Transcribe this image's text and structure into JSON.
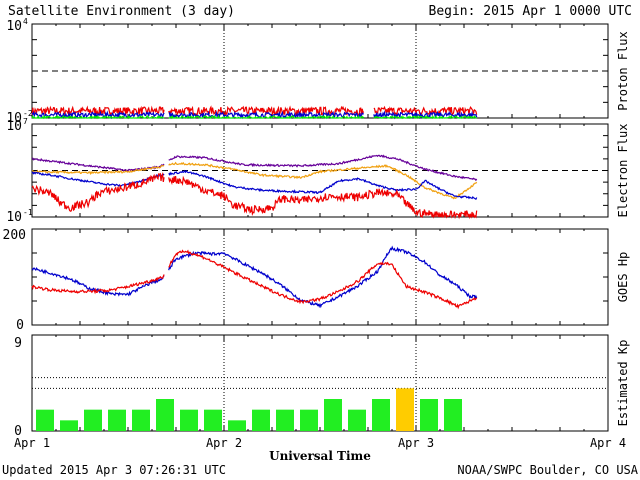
{
  "header": {
    "title": "Satellite Environment (3 day)",
    "begin": "Begin:  2015 Apr 1 0000 UTC"
  },
  "footer": {
    "updated": "Updated 2015 Apr  3 07:26:31 UTC",
    "credit": "NOAA/SWPC Boulder, CO USA",
    "xaxis_title": "Universal Time"
  },
  "colors": {
    "red": "#ee0000",
    "blue": "#0000cc",
    "green": "#00ee00",
    "purple": "#660099",
    "orange": "#f0a010",
    "kp_normal": "#22ee22",
    "kp_storm": "#ffcc00"
  },
  "chart_data": [
    {
      "type": "line",
      "name": "proton",
      "ylabel": "Proton Flux",
      "log_scale": true,
      "ylim_exp": [
        -2,
        4
      ],
      "ytick_labels": [
        {
          "base": "10",
          "exp": "4"
        },
        {
          "base": "10",
          "exp": "-2"
        }
      ],
      "threshold_exp": 1,
      "xlim_days": [
        0,
        3
      ],
      "series": [
        {
          "color_key": "red",
          "level_exp": -1.55,
          "noise": 0.25
        },
        {
          "color_key": "blue",
          "level_exp": -1.8,
          "noise": 0.15
        },
        {
          "color_key": "green",
          "level_exp": -2.0,
          "noise": 0.12
        }
      ],
      "gaps_days": [
        [
          0.69,
          0.71
        ],
        [
          1.73,
          1.78
        ]
      ],
      "data_end_day": 2.32
    },
    {
      "type": "line",
      "name": "electron",
      "ylabel": "Electron Flux",
      "log_scale": true,
      "ylim_exp": [
        -1,
        7
      ],
      "ytick_labels": [
        {
          "base": "10",
          "exp": "7"
        },
        {
          "base": "10",
          "exp": "-1"
        }
      ],
      "threshold_exp": 3,
      "xlim_days": [
        0,
        3
      ],
      "series": [
        {
          "color_key": "purple",
          "points": [
            [
              0,
              4.0
            ],
            [
              0.3,
              3.4
            ],
            [
              0.5,
              3.0
            ],
            [
              0.66,
              3.3
            ],
            [
              0.75,
              4.2
            ],
            [
              0.9,
              4.1
            ],
            [
              1.1,
              3.5
            ],
            [
              1.4,
              3.4
            ],
            [
              1.6,
              3.6
            ],
            [
              1.8,
              4.3
            ],
            [
              1.9,
              4.0
            ],
            [
              2.05,
              3.1
            ],
            [
              2.2,
              2.5
            ],
            [
              2.32,
              2.2
            ]
          ]
        },
        {
          "color_key": "orange",
          "points": [
            [
              0,
              2.9
            ],
            [
              0.3,
              2.8
            ],
            [
              0.5,
              2.9
            ],
            [
              0.66,
              3.3
            ],
            [
              0.75,
              3.6
            ],
            [
              0.9,
              3.5
            ],
            [
              1.05,
              3.1
            ],
            [
              1.2,
              2.6
            ],
            [
              1.4,
              2.4
            ],
            [
              1.5,
              2.9
            ],
            [
              1.7,
              3.2
            ],
            [
              1.85,
              3.4
            ],
            [
              1.95,
              2.6
            ],
            [
              2.05,
              1.5
            ],
            [
              2.2,
              0.6
            ],
            [
              2.32,
              2.0
            ]
          ]
        },
        {
          "color_key": "blue",
          "points": [
            [
              0,
              2.8
            ],
            [
              0.1,
              2.6
            ],
            [
              0.2,
              2.3
            ],
            [
              0.35,
              1.9
            ],
            [
              0.46,
              1.7
            ],
            [
              0.55,
              2.0
            ],
            [
              0.66,
              2.6
            ],
            [
              0.8,
              2.9
            ],
            [
              0.9,
              2.5
            ],
            [
              1.05,
              1.6
            ],
            [
              1.2,
              1.3
            ],
            [
              1.35,
              1.2
            ],
            [
              1.5,
              1.1
            ],
            [
              1.6,
              2.1
            ],
            [
              1.7,
              2.3
            ],
            [
              1.8,
              1.7
            ],
            [
              1.9,
              1.3
            ],
            [
              2.0,
              1.4
            ],
            [
              2.05,
              2.1
            ],
            [
              2.1,
              1.6
            ],
            [
              2.2,
              0.8
            ],
            [
              2.32,
              0.6
            ]
          ]
        },
        {
          "color_key": "red",
          "points": [
            [
              0,
              1.5
            ],
            [
              0.1,
              1.0
            ],
            [
              0.15,
              0.2
            ],
            [
              0.2,
              -0.2
            ],
            [
              0.3,
              0.3
            ],
            [
              0.35,
              1.1
            ],
            [
              0.45,
              1.4
            ],
            [
              0.55,
              1.8
            ],
            [
              0.66,
              2.4
            ],
            [
              0.8,
              2.1
            ],
            [
              0.9,
              1.3
            ],
            [
              1.0,
              0.8
            ],
            [
              1.05,
              0.0
            ],
            [
              1.15,
              -0.4
            ],
            [
              1.25,
              -0.2
            ],
            [
              1.3,
              0.6
            ],
            [
              1.4,
              0.4
            ],
            [
              1.55,
              0.8
            ],
            [
              1.7,
              0.7
            ],
            [
              1.8,
              1.1
            ],
            [
              1.9,
              0.9
            ],
            [
              2.0,
              -0.6
            ],
            [
              2.1,
              -0.8
            ],
            [
              2.32,
              -0.8
            ]
          ]
        }
      ],
      "gaps_days": [
        [
          0.69,
          0.71
        ]
      ],
      "data_end_day": 2.32
    },
    {
      "type": "line",
      "name": "goes_hp",
      "ylabel": "GOES Hp",
      "log_scale": false,
      "ylim": [
        0,
        200
      ],
      "yticks": [
        0,
        200
      ],
      "xlim_days": [
        0,
        3
      ],
      "series": [
        {
          "color_key": "blue",
          "points": [
            [
              0,
              118
            ],
            [
              0.1,
              108
            ],
            [
              0.2,
              96
            ],
            [
              0.3,
              76
            ],
            [
              0.42,
              64
            ],
            [
              0.5,
              64
            ],
            [
              0.62,
              88
            ],
            [
              0.68,
              96
            ],
            [
              0.75,
              138
            ],
            [
              0.85,
              150
            ],
            [
              0.95,
              148
            ],
            [
              1.0,
              150
            ],
            [
              1.1,
              128
            ],
            [
              1.2,
              108
            ],
            [
              1.3,
              82
            ],
            [
              1.4,
              52
            ],
            [
              1.5,
              40
            ],
            [
              1.6,
              60
            ],
            [
              1.7,
              82
            ],
            [
              1.8,
              112
            ],
            [
              1.87,
              160
            ],
            [
              1.95,
              152
            ],
            [
              2.05,
              130
            ],
            [
              2.12,
              105
            ],
            [
              2.2,
              86
            ],
            [
              2.28,
              60
            ],
            [
              2.32,
              58
            ]
          ]
        },
        {
          "color_key": "red",
          "points": [
            [
              0,
              80
            ],
            [
              0.1,
              73
            ],
            [
              0.2,
              70
            ],
            [
              0.3,
              70
            ],
            [
              0.4,
              72
            ],
            [
              0.5,
              80
            ],
            [
              0.62,
              92
            ],
            [
              0.68,
              100
            ],
            [
              0.75,
              148
            ],
            [
              0.8,
              154
            ],
            [
              0.9,
              140
            ],
            [
              1.0,
              120
            ],
            [
              1.1,
              100
            ],
            [
              1.2,
              80
            ],
            [
              1.3,
              62
            ],
            [
              1.4,
              48
            ],
            [
              1.5,
              54
            ],
            [
              1.6,
              70
            ],
            [
              1.7,
              92
            ],
            [
              1.8,
              128
            ],
            [
              1.87,
              128
            ],
            [
              1.95,
              80
            ],
            [
              2.05,
              68
            ],
            [
              2.15,
              52
            ],
            [
              2.22,
              38
            ],
            [
              2.32,
              58
            ]
          ]
        }
      ],
      "gaps_days": [
        [
          0.69,
          0.71
        ]
      ],
      "data_end_day": 2.32
    },
    {
      "type": "bar",
      "name": "kp",
      "ylabel": "Estimated Kp",
      "ylim": [
        0,
        9
      ],
      "yticks": [
        0,
        9
      ],
      "dotted_levels": [
        4,
        5,
        9
      ],
      "xlim_days": [
        0,
        3
      ],
      "bar_width_days": 0.125,
      "values": [
        2,
        1,
        2,
        2,
        2,
        3,
        2,
        2,
        1,
        2,
        2,
        2,
        3,
        2,
        3,
        4,
        3,
        3
      ],
      "storm_threshold": 4
    }
  ],
  "xaxis": {
    "ticks": [
      "Apr 1",
      "Apr 2",
      "Apr 3",
      "Apr 4"
    ]
  }
}
